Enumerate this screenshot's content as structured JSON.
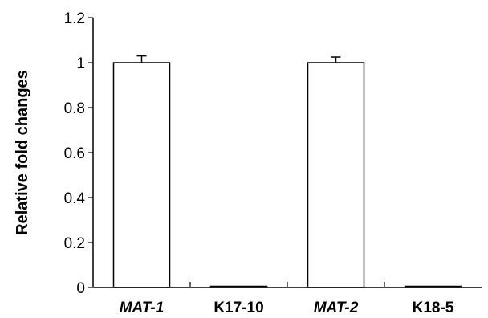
{
  "chart_data": {
    "type": "bar",
    "title": "",
    "xlabel": "",
    "ylabel": "Relative fold changes",
    "categories": [
      "MAT-1",
      "K17-10",
      "MAT-2",
      "K18-5"
    ],
    "category_italic": [
      true,
      false,
      true,
      false
    ],
    "values": [
      1.0,
      0.0,
      1.0,
      0.0
    ],
    "error": [
      0.03,
      0.0,
      0.025,
      0.0
    ],
    "ylim": [
      0,
      1.2
    ],
    "yticks": [
      0,
      0.2,
      0.4,
      0.6,
      0.8,
      1,
      1.2
    ],
    "ytick_labels": [
      "0",
      "0.2",
      "0.4",
      "0.6",
      "0.8",
      "1",
      "1.2"
    ],
    "grid": false,
    "bar_fill": "#ffffff",
    "bar_stroke": "#000000"
  }
}
